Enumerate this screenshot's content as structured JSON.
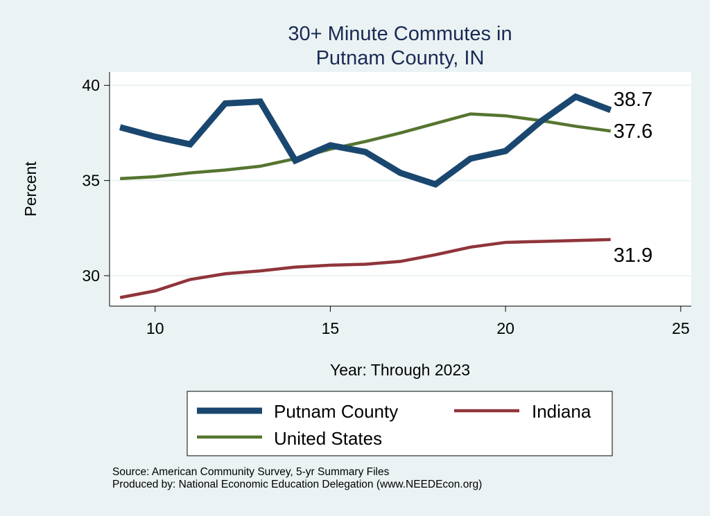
{
  "chart_data": {
    "type": "line",
    "title": "30+ Minute Commutes in Putnam County, IN",
    "title_lines": [
      "30+ Minute Commutes in",
      "Putnam County, IN"
    ],
    "xlabel": "Year: Through 2023",
    "ylabel": "Percent",
    "xlim": [
      8.7,
      25.3
    ],
    "ylim": [
      28.4,
      40.7
    ],
    "xticks": [
      10,
      15,
      20,
      25
    ],
    "yticks": [
      30,
      35,
      40
    ],
    "grid": true,
    "legend_position": "bottom",
    "x": [
      9,
      10,
      11,
      12,
      13,
      14,
      15,
      16,
      17,
      18,
      19,
      20,
      21,
      22,
      23
    ],
    "series": [
      {
        "name": "Putnam County",
        "color": "#1a476f",
        "width": 9,
        "values": [
          37.8,
          37.3,
          36.9,
          39.05,
          39.15,
          36.05,
          36.85,
          36.5,
          35.4,
          34.8,
          36.15,
          36.55,
          38.1,
          39.4,
          38.7
        ],
        "end_label": "38.7"
      },
      {
        "name": "Indiana",
        "color": "#90353b",
        "width": 4.5,
        "values": [
          28.85,
          29.2,
          29.8,
          30.1,
          30.25,
          30.45,
          30.55,
          30.6,
          30.75,
          31.1,
          31.5,
          31.75,
          31.8,
          31.85,
          31.9
        ],
        "end_label": "31.9"
      },
      {
        "name": "United States",
        "color": "#55752f",
        "width": 4.5,
        "values": [
          35.1,
          35.2,
          35.4,
          35.55,
          35.75,
          36.15,
          36.65,
          37.05,
          37.5,
          38.0,
          38.5,
          38.4,
          38.15,
          37.85,
          37.6
        ],
        "end_label": "37.6"
      }
    ]
  },
  "notes": {
    "source": "Source: American Community Survey, 5-yr Summary Files",
    "produced": "Produced by: National Economic Education Delegation (www.NEEDEcon.org)"
  }
}
